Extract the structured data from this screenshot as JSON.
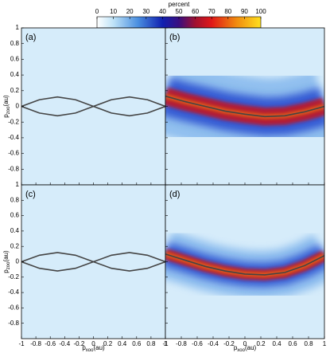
{
  "chart_data": {
    "type": "heatmap",
    "colorbar": {
      "label": "percent",
      "lim": [
        0,
        100
      ],
      "ticks": [
        0,
        10,
        20,
        30,
        40,
        50,
        60,
        70,
        80,
        90,
        100
      ]
    },
    "xlabel": {
      "base": "p",
      "sub": "xoo",
      "unit": "(au)"
    },
    "ylabel": {
      "base": "p",
      "sub": "zoo",
      "unit": "(au)"
    },
    "xlim": [
      -1,
      1
    ],
    "ylim": [
      -1,
      1
    ],
    "xticks": [
      -1,
      -0.8,
      -0.6,
      -0.4,
      -0.2,
      0,
      0.2,
      0.4,
      0.6,
      0.8,
      1
    ],
    "yticks": [
      -0.8,
      -0.6,
      -0.4,
      -0.2,
      0,
      0.2,
      0.4,
      0.6,
      0.8,
      1
    ],
    "panels": [
      {
        "label": "(a)",
        "series": [
          {
            "color": "#444444",
            "x": [
              -1,
              -0.75,
              -0.5,
              -0.25,
              0,
              0.25,
              0.5,
              0.75,
              1
            ],
            "values": [
              0,
              0.085,
              0.12,
              0.085,
              0,
              -0.085,
              -0.12,
              -0.085,
              0
            ]
          },
          {
            "color": "#444444",
            "x": [
              -1,
              -0.75,
              -0.5,
              -0.25,
              0,
              0.25,
              0.5,
              0.75,
              1
            ],
            "values": [
              0,
              -0.085,
              -0.12,
              -0.085,
              0,
              0.085,
              0.12,
              0.085,
              0
            ]
          }
        ]
      },
      {
        "label": "(b)",
        "series": [
          {
            "color": "#444444",
            "x": [
              -1,
              -0.75,
              -0.5,
              -0.25,
              0,
              0.25,
              0.5,
              0.75,
              1
            ],
            "values": [
              0.13,
              0.06,
              0,
              -0.06,
              -0.1,
              -0.13,
              -0.12,
              -0.07,
              0
            ]
          }
        ]
      },
      {
        "label": "(c)",
        "series": [
          {
            "color": "#444444",
            "x": [
              -1,
              -0.75,
              -0.5,
              -0.25,
              0,
              0.25,
              0.5,
              0.75,
              1
            ],
            "values": [
              0,
              0.085,
              0.12,
              0.085,
              0,
              -0.085,
              -0.12,
              -0.085,
              0
            ]
          },
          {
            "color": "#444444",
            "x": [
              -1,
              -0.75,
              -0.5,
              -0.25,
              0,
              0.25,
              0.5,
              0.75,
              1
            ],
            "values": [
              0,
              -0.085,
              -0.12,
              -0.085,
              0,
              0.085,
              0.12,
              0.085,
              0
            ]
          }
        ]
      },
      {
        "label": "(d)",
        "series": [
          {
            "color": "#444444",
            "x": [
              -1,
              -0.75,
              -0.5,
              -0.25,
              0,
              0.25,
              0.5,
              0.75,
              1
            ],
            "values": [
              0.1,
              0.02,
              -0.06,
              -0.12,
              -0.16,
              -0.17,
              -0.14,
              -0.05,
              0.08
            ]
          }
        ]
      }
    ]
  }
}
